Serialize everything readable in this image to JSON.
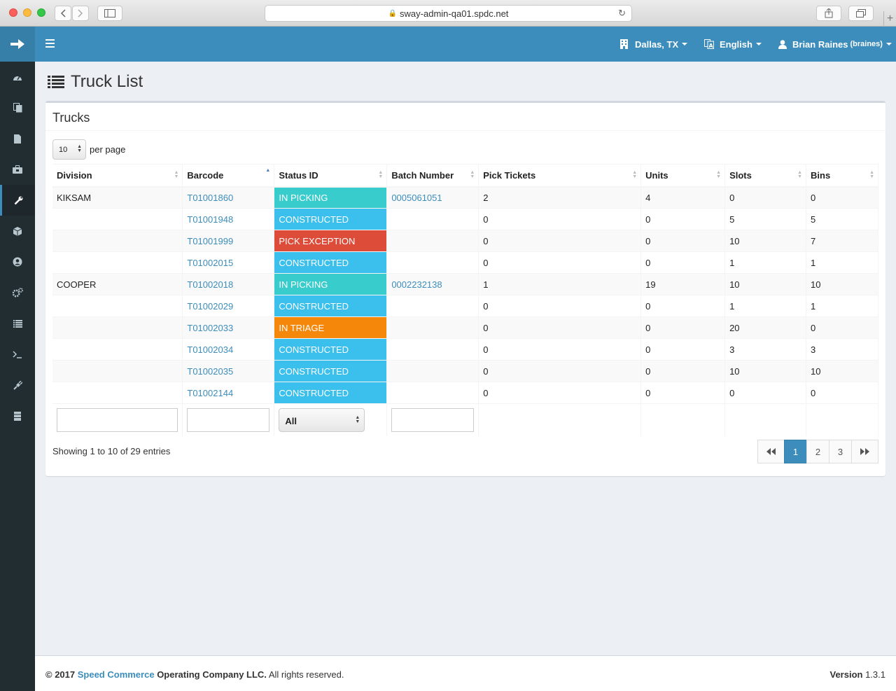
{
  "browser": {
    "url": "sway-admin-qa01.spdc.net"
  },
  "header": {
    "location": "Dallas, TX",
    "language": "English",
    "user_name": "Brian Raines",
    "user_login": "(braines)"
  },
  "sidebar": {
    "items": [
      "dashboard-icon",
      "copy-icon",
      "file-icon",
      "briefcase-icon",
      "wrench-icon",
      "cube-icon",
      "user-circle-icon",
      "cogs-icon",
      "list-icon",
      "terminal-icon",
      "plug-icon",
      "server-icon"
    ],
    "active_index": 4
  },
  "page": {
    "title": "Truck List"
  },
  "box": {
    "title": "Trucks",
    "per_page_value": "10",
    "per_page_label": "per page"
  },
  "table": {
    "columns": [
      "Division",
      "Barcode",
      "Status ID",
      "Batch Number",
      "Pick Tickets",
      "Units",
      "Slots",
      "Bins"
    ],
    "rows": [
      {
        "division": "KIKSAM",
        "barcode": "T01001860",
        "status": "IN PICKING",
        "batch": "0005061051",
        "pick_tickets": "2",
        "units": "4",
        "slots": "0",
        "bins": "0"
      },
      {
        "division": "",
        "barcode": "T01001948",
        "status": "CONSTRUCTED",
        "batch": "",
        "pick_tickets": "0",
        "units": "0",
        "slots": "5",
        "bins": "5"
      },
      {
        "division": "",
        "barcode": "T01001999",
        "status": "PICK EXCEPTION",
        "batch": "",
        "pick_tickets": "0",
        "units": "0",
        "slots": "10",
        "bins": "7"
      },
      {
        "division": "",
        "barcode": "T01002015",
        "status": "CONSTRUCTED",
        "batch": "",
        "pick_tickets": "0",
        "units": "0",
        "slots": "1",
        "bins": "1"
      },
      {
        "division": "COOPER",
        "barcode": "T01002018",
        "status": "IN PICKING",
        "batch": "0002232138",
        "pick_tickets": "1",
        "units": "19",
        "slots": "10",
        "bins": "10"
      },
      {
        "division": "",
        "barcode": "T01002029",
        "status": "CONSTRUCTED",
        "batch": "",
        "pick_tickets": "0",
        "units": "0",
        "slots": "1",
        "bins": "1"
      },
      {
        "division": "",
        "barcode": "T01002033",
        "status": "IN TRIAGE",
        "batch": "",
        "pick_tickets": "0",
        "units": "0",
        "slots": "20",
        "bins": "0"
      },
      {
        "division": "",
        "barcode": "T01002034",
        "status": "CONSTRUCTED",
        "batch": "",
        "pick_tickets": "0",
        "units": "0",
        "slots": "3",
        "bins": "3"
      },
      {
        "division": "",
        "barcode": "T01002035",
        "status": "CONSTRUCTED",
        "batch": "",
        "pick_tickets": "0",
        "units": "0",
        "slots": "10",
        "bins": "10"
      },
      {
        "division": "",
        "barcode": "T01002144",
        "status": "CONSTRUCTED",
        "batch": "",
        "pick_tickets": "0",
        "units": "0",
        "slots": "0",
        "bins": "0"
      }
    ],
    "status_filter": "All"
  },
  "status_colors": {
    "IN PICKING": "#3ecfcf",
    "CONSTRUCTED": "#3bbfec",
    "PICK EXCEPTION": "#e04b33",
    "IN TRIAGE": "#f5880b"
  },
  "pagination": {
    "info": "Showing 1 to 10 of 29 entries",
    "pages": [
      "1",
      "2",
      "3"
    ],
    "current": "1"
  },
  "footer": {
    "copyright_prefix": "© 2017 ",
    "company_link": "Speed Commerce",
    "company_suffix": "Operating Company LLC.",
    "rights": " All rights reserved.",
    "version_label": "Version",
    "version_value": "1.3.1"
  }
}
